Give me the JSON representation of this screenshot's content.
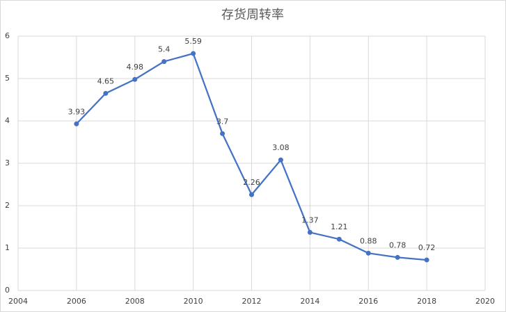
{
  "chart_data": {
    "type": "line",
    "title": "存货周转率",
    "x": [
      2006,
      2007,
      2008,
      2009,
      2010,
      2011,
      2012,
      2013,
      2014,
      2015,
      2016,
      2017,
      2018
    ],
    "series": [
      {
        "name": "存货周转率",
        "color": "#4472c4",
        "values": [
          3.93,
          4.65,
          4.98,
          5.4,
          5.59,
          3.7,
          2.26,
          3.08,
          1.37,
          1.21,
          0.88,
          0.78,
          0.72
        ]
      }
    ],
    "xlim": [
      2004,
      2020
    ],
    "xticks": [
      2004,
      2006,
      2008,
      2010,
      2012,
      2014,
      2016,
      2018,
      2020
    ],
    "ylim": [
      0,
      6
    ],
    "yticks": [
      0,
      1,
      2,
      3,
      4,
      5,
      6
    ],
    "grid": true
  }
}
